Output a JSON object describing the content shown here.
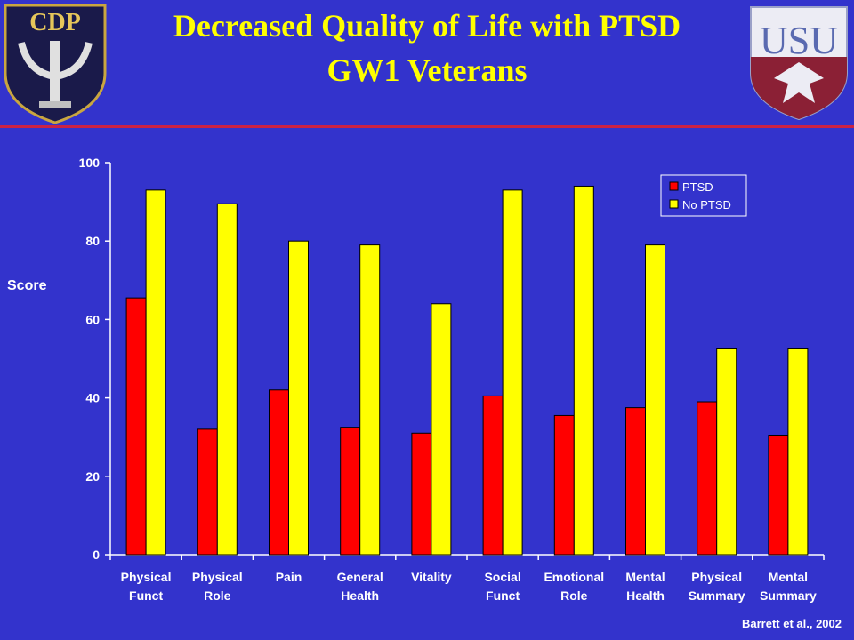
{
  "slide": {
    "title_line1": "Decreased Quality of Life with PTSD",
    "title_line2": "GW1 Veterans",
    "credit": "Barrett et al., 2002",
    "logo_left_text": "CDP",
    "logo_right_text": "USU"
  },
  "colors": {
    "background": "#3333CC",
    "title": "#FFFF00",
    "rule": "#CC2244",
    "ptsd": "#FF0000",
    "no_ptsd": "#FFFF00"
  },
  "chart_data": {
    "type": "bar",
    "ylabel": "Score",
    "xlabel": "",
    "ylim": [
      0,
      100
    ],
    "yticks": [
      0,
      20,
      40,
      60,
      80,
      100
    ],
    "grid": false,
    "legend_position": "top-right",
    "categories": [
      [
        "Physical",
        "Funct"
      ],
      [
        "Physical",
        "Role"
      ],
      [
        "Pain"
      ],
      [
        "General",
        "Health"
      ],
      [
        "Vitality"
      ],
      [
        "Social",
        "Funct"
      ],
      [
        "Emotional",
        "Role"
      ],
      [
        "Mental",
        "Health"
      ],
      [
        "Physical",
        "Summary"
      ],
      [
        "Mental",
        "Summary"
      ]
    ],
    "series": [
      {
        "name": "PTSD",
        "color": "#FF0000",
        "values": [
          65.5,
          32,
          42,
          32.5,
          31,
          40.5,
          35.5,
          37.5,
          39,
          30.5
        ]
      },
      {
        "name": "No PTSD",
        "color": "#FFFF00",
        "values": [
          93,
          89.5,
          80,
          79,
          64,
          93,
          94,
          79,
          52.5,
          52.5
        ]
      }
    ]
  }
}
